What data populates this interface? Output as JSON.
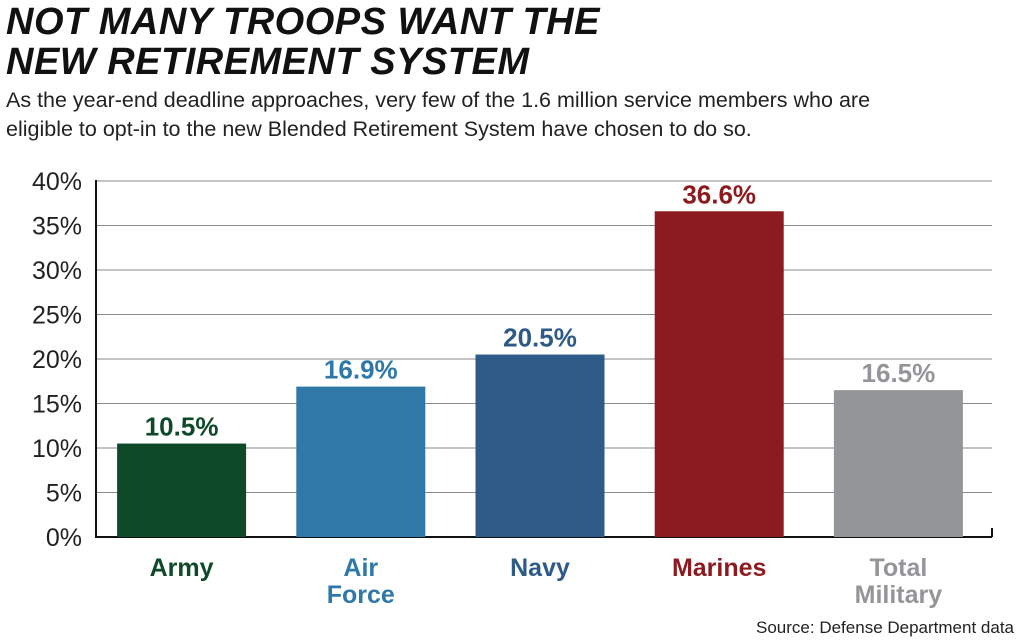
{
  "title_lines": [
    "NOT MANY TROOPS WANT THE",
    "NEW RETIREMENT SYSTEM"
  ],
  "subtitle_lines": [
    "As the year-end deadline approaches, very few of the 1.6 million service members who are",
    "eligible to opt-in to the new Blended Retirement System have chosen to do so."
  ],
  "source": "Source: Defense Department data",
  "chart_data": {
    "type": "bar",
    "title": "NOT MANY TROOPS WANT THE NEW RETIREMENT SYSTEM",
    "categories": [
      {
        "lines": [
          "Army"
        ],
        "color": "#0e4a2a"
      },
      {
        "lines": [
          "Air",
          "Force"
        ],
        "color": "#2f78a8"
      },
      {
        "lines": [
          "Navy"
        ],
        "color": "#2e5a87"
      },
      {
        "lines": [
          "Marines"
        ],
        "color": "#8b1b1f"
      },
      {
        "lines": [
          "Total",
          "Military"
        ],
        "color": "#939598"
      }
    ],
    "values": [
      10.5,
      16.9,
      20.5,
      36.6,
      16.5
    ],
    "value_labels": [
      "10.5%",
      "16.9%",
      "20.5%",
      "36.6%",
      "16.5%"
    ],
    "ylim": [
      0,
      40
    ],
    "yticks": [
      0,
      5,
      10,
      15,
      20,
      25,
      30,
      35,
      40
    ],
    "ytick_labels": [
      "0%",
      "5%",
      "10%",
      "15%",
      "20%",
      "25%",
      "30%",
      "35%",
      "40%"
    ],
    "grid": true,
    "xlabel": "",
    "ylabel": ""
  }
}
